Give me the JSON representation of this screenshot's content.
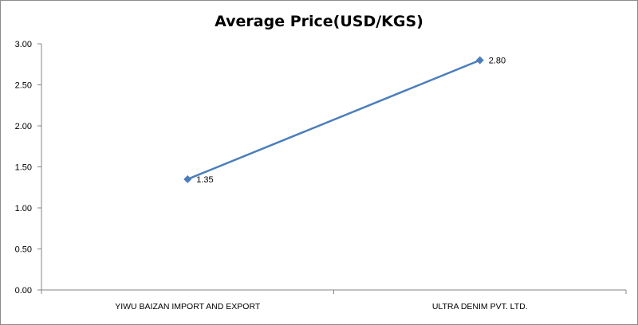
{
  "chart_data": {
    "type": "line",
    "title": "Average Price(USD/KGS)",
    "xlabel": "",
    "ylabel": "",
    "categories": [
      "YIWU BAIZAN IMPORT AND EXPORT",
      "ULTRA DENIM PVT. LTD."
    ],
    "series": [
      {
        "values": [
          1.35,
          2.8
        ],
        "data_labels": [
          "1.35",
          "2.80"
        ]
      }
    ],
    "ylim": [
      0,
      3
    ],
    "yticks": [
      "0.00",
      "0.50",
      "1.00",
      "1.50",
      "2.00",
      "2.50",
      "3.00"
    ],
    "grid": false,
    "legend": "none",
    "colors": {
      "line": "#4a7ebb",
      "marker": "#4a7ebb",
      "axis": "#868686"
    }
  }
}
